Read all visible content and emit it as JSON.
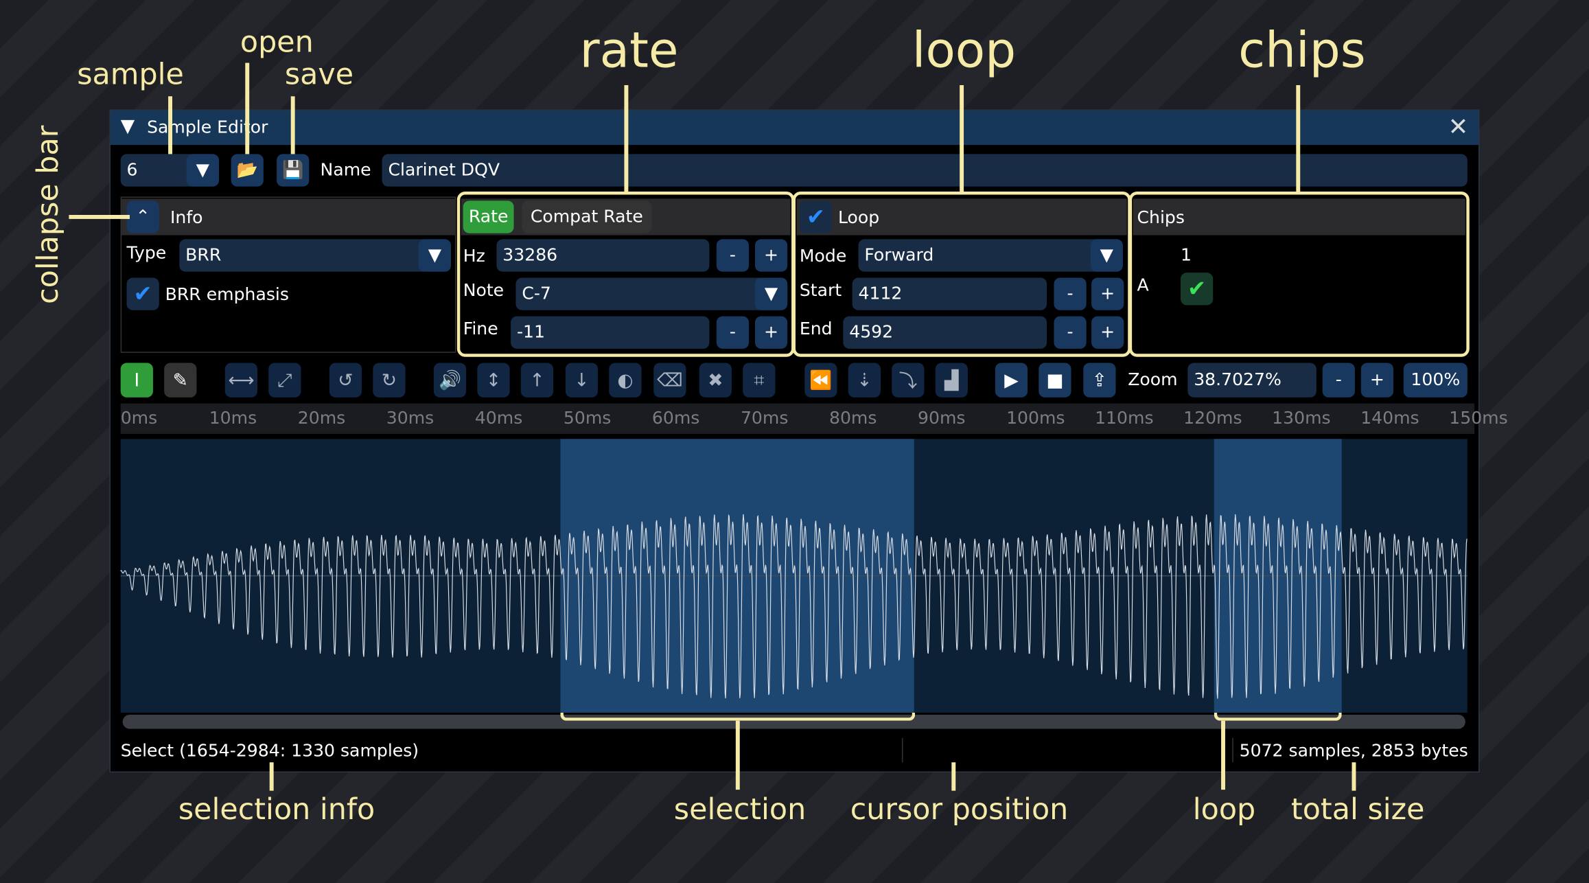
{
  "window": {
    "title": "Sample Editor"
  },
  "sample": {
    "index": "6",
    "name_label": "Name",
    "name": "Clarinet DQV"
  },
  "info": {
    "title": "Info",
    "type_label": "Type",
    "type": "BRR",
    "brr_emphasis_label": "BRR emphasis",
    "brr_emphasis": true
  },
  "rate": {
    "tab_rate": "Rate",
    "tab_compat": "Compat Rate",
    "hz_label": "Hz",
    "hz": "33286",
    "note_label": "Note",
    "note": "C-7",
    "fine_label": "Fine",
    "fine": "-11",
    "minus": "-",
    "plus": "+"
  },
  "loop": {
    "title": "Loop",
    "enabled": true,
    "mode_label": "Mode",
    "mode": "Forward",
    "start_label": "Start",
    "start": "4112",
    "end_label": "End",
    "end": "4592"
  },
  "chips": {
    "title": "Chips",
    "column": "1",
    "row": "A",
    "enabled": true
  },
  "toolbar": {
    "zoom_label": "Zoom",
    "zoom": "38.7027%",
    "zoom_reset": "100%",
    "icons": [
      "select-icon",
      "pencil-icon",
      "fit-width-icon",
      "expand-icon",
      "undo-icon",
      "redo-icon",
      "volume-icon",
      "normalize-icon",
      "fade-in-icon",
      "fade-out-icon",
      "invert-icon",
      "erase-icon",
      "delete-icon",
      "crop-icon",
      "reverse-icon",
      "resample-icon",
      "loop-end-icon",
      "filter-icon",
      "play-icon",
      "stop-icon",
      "export-icon"
    ]
  },
  "ruler": [
    "0ms",
    "10ms",
    "20ms",
    "30ms",
    "40ms",
    "50ms",
    "60ms",
    "70ms",
    "80ms",
    "90ms",
    "100ms",
    "110ms",
    "120ms",
    "130ms",
    "140ms",
    "150ms"
  ],
  "status": {
    "selection": "Select (1654-2984: 1330 samples)",
    "total": "5072 samples, 2853 bytes"
  },
  "annotations": {
    "sample": "sample",
    "open": "open",
    "save": "save",
    "rate": "rate",
    "loop": "loop",
    "chips": "chips",
    "collapse_bar": "collapse bar",
    "selection_info": "selection info",
    "selection": "selection",
    "cursor_position": "cursor position",
    "loop_bottom": "loop",
    "total_size": "total size"
  },
  "colors": {
    "accent_green": "#2f9e3a",
    "button_blue": "#183860",
    "annotation": "#f6eba6",
    "selection": "#1d4670",
    "waveform_bg": "#0c2036"
  }
}
